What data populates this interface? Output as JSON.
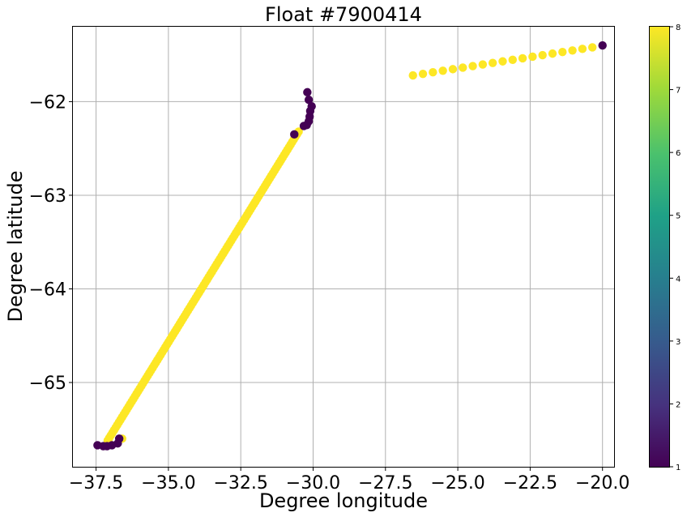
{
  "chart_data": {
    "type": "scatter",
    "title": "Float #7900414",
    "xlabel": "Degree longitude",
    "ylabel": "Degree latitude",
    "xlim": [
      -38.3,
      -19.6
    ],
    "ylim": [
      -65.9,
      -61.2
    ],
    "xticks": [
      -37.5,
      -35.0,
      -32.5,
      -30.0,
      -27.5,
      -25.0,
      -22.5,
      -20.0
    ],
    "xtick_labels": [
      "−37.5",
      "−35.0",
      "−32.5",
      "−30.0",
      "−27.5",
      "−25.0",
      "−22.5",
      "−20.0"
    ],
    "yticks": [
      -62,
      -63,
      -64,
      -65
    ],
    "ytick_labels": [
      "−62",
      "−63",
      "−64",
      "−65"
    ],
    "grid": true,
    "colormap": "viridis",
    "colorbar": {
      "min": 1,
      "max": 8,
      "ticks": [
        1,
        2,
        3,
        4,
        5,
        6,
        7,
        8
      ],
      "tick_labels": [
        "1",
        "2",
        "3",
        "4",
        "5",
        "6",
        "7",
        "8"
      ]
    },
    "segments": [
      {
        "value": 8,
        "from": [
          -26.55,
          -61.72
        ],
        "to": [
          -20.35,
          -61.42
        ],
        "count": 19
      },
      {
        "value": 8,
        "from": [
          -37.1,
          -65.62
        ],
        "to": [
          -30.5,
          -62.32
        ],
        "count": 120
      }
    ],
    "points": [
      {
        "x": -20.0,
        "y": -61.4,
        "value": 1
      },
      {
        "x": -30.2,
        "y": -61.9,
        "value": 1
      },
      {
        "x": -30.15,
        "y": -61.98,
        "value": 1
      },
      {
        "x": -30.05,
        "y": -62.05,
        "value": 1
      },
      {
        "x": -30.1,
        "y": -62.1,
        "value": 1
      },
      {
        "x": -30.12,
        "y": -62.16,
        "value": 1
      },
      {
        "x": -30.15,
        "y": -62.21,
        "value": 1
      },
      {
        "x": -30.22,
        "y": -62.25,
        "value": 1
      },
      {
        "x": -30.32,
        "y": -62.26,
        "value": 1
      },
      {
        "x": -30.65,
        "y": -62.35,
        "value": 1
      },
      {
        "x": -36.6,
        "y": -65.6,
        "value": 8
      },
      {
        "x": -36.7,
        "y": -65.6,
        "value": 1
      },
      {
        "x": -36.75,
        "y": -65.65,
        "value": 1
      },
      {
        "x": -36.95,
        "y": -65.67,
        "value": 1
      },
      {
        "x": -37.12,
        "y": -65.68,
        "value": 1
      },
      {
        "x": -37.25,
        "y": -65.68,
        "value": 1
      },
      {
        "x": -37.45,
        "y": -65.67,
        "value": 1
      }
    ]
  }
}
